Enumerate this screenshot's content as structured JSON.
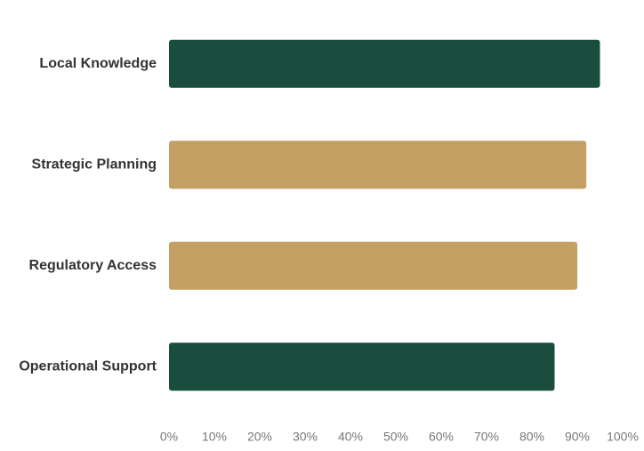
{
  "chart_data": {
    "type": "hbar",
    "categories": [
      "Local Knowledge",
      "Strategic Planning",
      "Regulatory Access",
      "Operational Support"
    ],
    "values": [
      95,
      92,
      90,
      85
    ],
    "colors": [
      "#1b4d3e",
      "#c4a064",
      "#c4a064",
      "#1b4d3e"
    ],
    "xlim": [
      0,
      100
    ],
    "xticks": [
      {
        "value": 0,
        "label": "0%"
      },
      {
        "value": 10,
        "label": "10%"
      },
      {
        "value": 20,
        "label": "20%"
      },
      {
        "value": 30,
        "label": "30%"
      },
      {
        "value": 40,
        "label": "40%"
      },
      {
        "value": 50,
        "label": "50%"
      },
      {
        "value": 60,
        "label": "60%"
      },
      {
        "value": 70,
        "label": "70%"
      },
      {
        "value": 80,
        "label": "80%"
      },
      {
        "value": 90,
        "label": "90%"
      },
      {
        "value": 100,
        "label": "100%"
      }
    ],
    "grid": false
  }
}
